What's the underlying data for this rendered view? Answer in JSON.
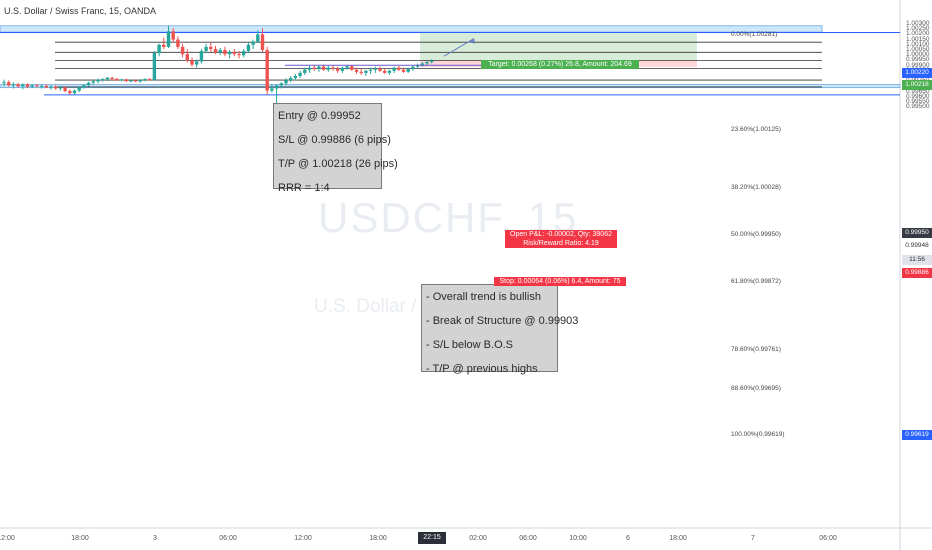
{
  "symbol": "U.S. Dollar / Swiss Franc, 15, OANDA",
  "watermark": {
    "ticker": "USDCHF, 15",
    "description": "U.S. Dollar / Swiss Franc"
  },
  "notes": {
    "trade_plan": [
      "Entry @ 0.99952",
      "S/L @ 0.99886 (6 pips)",
      "T/P @ 1.00218 (26 pips)",
      "RRR = 1:4"
    ],
    "analysis": [
      "- Overall trend is bullish",
      "- Break of Structure @ 0.99903",
      "- S/L below B.O.S",
      "- T/P @ previous highs"
    ]
  },
  "position": {
    "target_label": "Target: 0.00268 (0.27%) 26.8, Amount: 204.69",
    "open_pl_label": "Open P&L: -0.00002, Qty: 39062",
    "rr_label": "Risk/Reward Ratio: 4.19",
    "stop_label": "Stop: 0.00064 (0.06%) 6.4, Amount: 75"
  },
  "price_tags": {
    "target_line": "1.00220",
    "target": "1.00218",
    "last": "0.99950",
    "bid": "0.99948",
    "countdown": "11:56",
    "stop": "0.99886",
    "fib_low": "0.99619"
  },
  "time_tag": "22:15",
  "colors": {
    "up_candle": "#26a69a",
    "down_candle": "#ef5350",
    "target_zone": "#c8e6c9",
    "stop_zone": "#ffcdd2",
    "supply_zone": "#bbdefb",
    "target_tag": "#4caf50",
    "stop_tag": "#f23645",
    "line_blue": "#2962ff"
  },
  "chart_data": {
    "type": "candlestick",
    "title": "U.S. Dollar / Swiss Franc, 15, OANDA",
    "ylim": [
      0.9947,
      1.0032
    ],
    "y_ticks": [
      "1.00300",
      "1.00250",
      "1.00200",
      "1.00150",
      "1.00100",
      "1.00050",
      "1.00000",
      "0.99950",
      "0.99900",
      "0.99850",
      "0.99800",
      "0.99750",
      "0.99700",
      "0.99650",
      "0.99600",
      "0.99550",
      "0.99500"
    ],
    "x_ticks": [
      "12:00",
      "18:00",
      "3",
      "06:00",
      "12:00",
      "18:00",
      "02:00",
      "06:00",
      "10:00",
      "6",
      "18:00",
      "7",
      "06:00"
    ],
    "fib_levels": [
      {
        "ratio": "0.00%",
        "price": 1.00281,
        "label": "0.00%(1.00281)"
      },
      {
        "ratio": "23.60%",
        "price": 1.00125,
        "label": "23.60%(1.00125)"
      },
      {
        "ratio": "38.20%",
        "price": 1.00028,
        "label": "38.20%(1.00028)"
      },
      {
        "ratio": "50.00%",
        "price": 0.9995,
        "label": "50.00%(0.99950)"
      },
      {
        "ratio": "61.80%",
        "price": 0.99872,
        "label": "61.80%(0.99872)"
      },
      {
        "ratio": "78.60%",
        "price": 0.99761,
        "label": "78.60%(0.99761)"
      },
      {
        "ratio": "88.60%",
        "price": 0.99695,
        "label": "88.60%(0.99695)"
      },
      {
        "ratio": "100.00%",
        "price": 0.99619,
        "label": "100.00%(0.99619)"
      }
    ],
    "position": {
      "entry": 0.99952,
      "stop": 0.99886,
      "target": 1.00218
    },
    "zones": {
      "supply": [
        1.00222,
        1.00283
      ],
      "demand": [
        0.99688,
        0.99718
      ]
    },
    "break_of_structure": 0.99903,
    "candles": [
      [
        0.9973,
        0.99765,
        0.997,
        0.9974
      ],
      [
        0.9974,
        0.99758,
        0.99698,
        0.9971
      ],
      [
        0.9971,
        0.9974,
        0.9968,
        0.9972
      ],
      [
        0.9972,
        0.99735,
        0.9969,
        0.997
      ],
      [
        0.997,
        0.99728,
        0.99672,
        0.99718
      ],
      [
        0.99718,
        0.9973,
        0.99688,
        0.99695
      ],
      [
        0.99695,
        0.9972,
        0.99682,
        0.9971
      ],
      [
        0.9971,
        0.99722,
        0.9969,
        0.997
      ],
      [
        0.997,
        0.99715,
        0.9968,
        0.99705
      ],
      [
        0.99705,
        0.99718,
        0.99685,
        0.9969
      ],
      [
        0.9969,
        0.99712,
        0.99665,
        0.997
      ],
      [
        0.997,
        0.9971,
        0.99668,
        0.9968
      ],
      [
        0.9968,
        0.99705,
        0.9966,
        0.9969
      ],
      [
        0.9969,
        0.997,
        0.99645,
        0.99655
      ],
      [
        0.99655,
        0.9967,
        0.9962,
        0.99635
      ],
      [
        0.99635,
        0.99668,
        0.99622,
        0.9966
      ],
      [
        0.9966,
        0.997,
        0.99645,
        0.9969
      ],
      [
        0.9969,
        0.99722,
        0.99678,
        0.99712
      ],
      [
        0.99712,
        0.99745,
        0.997,
        0.99735
      ],
      [
        0.99735,
        0.99755,
        0.99715,
        0.99748
      ],
      [
        0.99748,
        0.99775,
        0.9973,
        0.99765
      ],
      [
        0.99765,
        0.99782,
        0.99745,
        0.9977
      ],
      [
        0.9977,
        0.9979,
        0.99752,
        0.99784
      ],
      [
        0.99784,
        0.99792,
        0.9976,
        0.99772
      ],
      [
        0.99772,
        0.99782,
        0.99752,
        0.9976
      ],
      [
        0.9976,
        0.99775,
        0.99748,
        0.99768
      ],
      [
        0.99768,
        0.99775,
        0.99742,
        0.9975
      ],
      [
        0.9975,
        0.99762,
        0.99738,
        0.99758
      ],
      [
        0.99758,
        0.99768,
        0.99742,
        0.99748
      ],
      [
        0.99748,
        0.9977,
        0.99735,
        0.99762
      ],
      [
        0.99762,
        0.9978,
        0.9975,
        0.9977
      ],
      [
        0.9977,
        0.9978,
        0.99755,
        0.9976
      ],
      [
        0.9976,
        1.0004,
        0.99755,
        1.0002
      ],
      [
        1.0002,
        1.0011,
        0.9999,
        1.001
      ],
      [
        1.001,
        1.0017,
        1.0006,
        1.0008
      ],
      [
        1.0008,
        1.00285,
        1.0007,
        1.0023
      ],
      [
        1.0023,
        1.0026,
        1.0012,
        1.0015
      ],
      [
        1.0015,
        1.0018,
        1.0006,
        1.0008
      ],
      [
        1.0008,
        1.0011,
        0.9998,
        1.0001
      ],
      [
        1.0001,
        1.0006,
        0.9993,
        0.9995
      ],
      [
        0.9995,
        0.9998,
        0.9989,
        0.9991
      ],
      [
        0.9991,
        0.9996,
        0.9988,
        0.9994
      ],
      [
        0.9994,
        1.0006,
        0.9992,
        1.0004
      ],
      [
        1.0004,
        1.0011,
        1.0002,
        1.0008
      ],
      [
        1.0008,
        1.0012,
        1.0003,
        1.0006
      ],
      [
        1.0006,
        1.0009,
        1.0001,
        1.0003
      ],
      [
        1.0003,
        1.0007,
        1.0,
        1.0005
      ],
      [
        1.0005,
        1.0008,
        0.9999,
        1.0001
      ],
      [
        1.0001,
        1.0005,
        0.9997,
        1.0003
      ],
      [
        1.0003,
        1.0006,
        0.9999,
        1.0001
      ],
      [
        1.0001,
        1.0004,
        0.9997,
        1.0
      ],
      [
        1.0,
        1.0006,
        0.9998,
        1.0004
      ],
      [
        1.0004,
        1.0012,
        1.0002,
        1.001
      ],
      [
        1.001,
        1.0015,
        1.0006,
        1.0013
      ],
      [
        1.0013,
        1.0024,
        1.0012,
        1.002
      ],
      [
        1.002,
        1.0026,
        1.0003,
        1.0005
      ],
      [
        1.0005,
        1.0008,
        0.9962,
        0.9966
      ],
      [
        0.9966,
        0.9972,
        0.9964,
        0.9968
      ],
      [
        0.9968,
        0.9972,
        0.9952,
        0.9971
      ],
      [
        0.9971,
        0.9974,
        0.9968,
        0.9973
      ],
      [
        0.9973,
        0.9978,
        0.9971,
        0.9976
      ],
      [
        0.9976,
        0.998,
        0.9974,
        0.9978
      ],
      [
        0.9978,
        0.9982,
        0.9976,
        0.998
      ],
      [
        0.998,
        0.9985,
        0.9978,
        0.9983
      ],
      [
        0.9983,
        0.9988,
        0.9981,
        0.9986
      ],
      [
        0.9986,
        0.999,
        0.9983,
        0.9988
      ],
      [
        0.9988,
        0.99905,
        0.9985,
        0.9987
      ],
      [
        0.9987,
        0.999,
        0.9984,
        0.9989
      ],
      [
        0.9989,
        0.9991,
        0.9985,
        0.9986
      ],
      [
        0.9986,
        0.999,
        0.9984,
        0.9988
      ],
      [
        0.9988,
        0.99905,
        0.9985,
        0.9987
      ],
      [
        0.9987,
        0.9989,
        0.9983,
        0.9985
      ],
      [
        0.9985,
        0.9989,
        0.9983,
        0.9988
      ],
      [
        0.9988,
        0.99903,
        0.9986,
        0.99895
      ],
      [
        0.99895,
        0.99903,
        0.9985,
        0.9986
      ],
      [
        0.9986,
        0.9988,
        0.9982,
        0.9984
      ],
      [
        0.9984,
        0.9987,
        0.9981,
        0.9983
      ],
      [
        0.9983,
        0.9986,
        0.998,
        0.9985
      ],
      [
        0.9985,
        0.9988,
        0.9982,
        0.9986
      ],
      [
        0.9986,
        0.9989,
        0.9983,
        0.9987
      ],
      [
        0.9987,
        0.9989,
        0.9984,
        0.9985
      ],
      [
        0.9985,
        0.9987,
        0.9982,
        0.9983
      ],
      [
        0.9983,
        0.9986,
        0.9981,
        0.9985
      ],
      [
        0.9985,
        0.9989,
        0.9983,
        0.9988
      ],
      [
        0.9988,
        0.99895,
        0.9985,
        0.9986
      ],
      [
        0.9986,
        0.9988,
        0.9983,
        0.9984
      ],
      [
        0.9984,
        0.9988,
        0.9983,
        0.9987
      ],
      [
        0.9987,
        0.999,
        0.9985,
        0.9989
      ],
      [
        0.9989,
        0.9992,
        0.9987,
        0.99905
      ],
      [
        0.99905,
        0.99935,
        0.9989,
        0.9992
      ],
      [
        0.9992,
        0.99945,
        0.99905,
        0.99935
      ],
      [
        0.99935,
        0.9996,
        0.9992,
        0.99948
      ]
    ]
  }
}
